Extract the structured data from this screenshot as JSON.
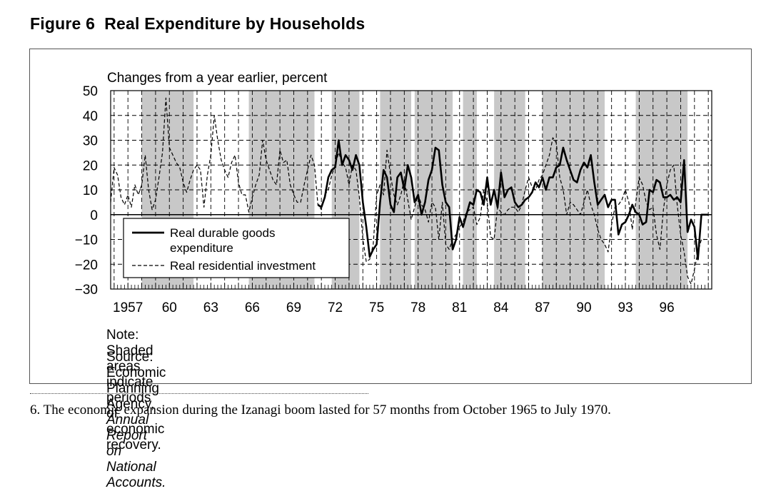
{
  "figure": {
    "title": "Figure 6  Real Expenditure by Households",
    "note": "Note: Shaded areas indicate periods of economic recovery.",
    "source_prefix": "Source: Economic Planning Agency, ",
    "source_title": "Annual Report on National Accounts.",
    "footnote": "6. The economic expansion during the Izanagi boom lasted for 57 months from October 1965 to July 1970."
  },
  "colors": {
    "shade": "#c8c8c8",
    "line": "#000000",
    "grid": "#000000"
  },
  "chart_data": {
    "type": "line",
    "title": "Changes from a year earlier, percent",
    "xlabel": "",
    "ylabel": "Changes from a year earlier, percent",
    "xlim": [
      1955.75,
      1999.25
    ],
    "ylim": [
      -30,
      50
    ],
    "yticks": [
      50,
      40,
      30,
      20,
      10,
      0,
      -10,
      -20,
      -30
    ],
    "ytick_labels": [
      "50",
      "40",
      "30",
      "20",
      "10",
      "0",
      "−10",
      "−20",
      "−30"
    ],
    "xtick_years": [
      1957,
      1960,
      1963,
      1966,
      1969,
      1972,
      1975,
      1978,
      1981,
      1984,
      1987,
      1990,
      1993,
      1996
    ],
    "xtick_labels": [
      "1957",
      "60",
      "63",
      "66",
      "69",
      "72",
      "75",
      "78",
      "81",
      "84",
      "87",
      "90",
      "93",
      "96"
    ],
    "grid": true,
    "shaded_periods": [
      [
        1958.0,
        1961.75
      ],
      [
        1965.75,
        1970.5
      ],
      [
        1971.75,
        1973.75
      ],
      [
        1975.25,
        1977.5
      ],
      [
        1977.75,
        1980.5
      ],
      [
        1981.25,
        1982.25
      ],
      [
        1983.5,
        1985.75
      ],
      [
        1987.0,
        1991.5
      ],
      [
        1993.75,
        1997.5
      ]
    ],
    "legend": {
      "position": "bottom-left",
      "entries": [
        "Real durable goods expenditure",
        "Real residential investment"
      ]
    },
    "series": [
      {
        "name": "Real durable goods expenditure",
        "style": "solid",
        "points": [
          [
            1970.75,
            4
          ],
          [
            1971.0,
            3
          ],
          [
            1971.25,
            7
          ],
          [
            1971.5,
            15
          ],
          [
            1971.75,
            18
          ],
          [
            1972.0,
            19
          ],
          [
            1972.25,
            30
          ],
          [
            1972.5,
            20
          ],
          [
            1972.75,
            24
          ],
          [
            1973.0,
            22
          ],
          [
            1973.25,
            18
          ],
          [
            1973.5,
            24
          ],
          [
            1973.75,
            20
          ],
          [
            1974.0,
            5
          ],
          [
            1974.25,
            -5
          ],
          [
            1974.5,
            -17
          ],
          [
            1974.75,
            -14
          ],
          [
            1975.0,
            -12
          ],
          [
            1975.25,
            5
          ],
          [
            1975.5,
            18
          ],
          [
            1975.75,
            15
          ],
          [
            1976.0,
            4
          ],
          [
            1976.25,
            1
          ],
          [
            1976.5,
            15
          ],
          [
            1976.75,
            17
          ],
          [
            1977.0,
            10
          ],
          [
            1977.25,
            20
          ],
          [
            1977.5,
            15
          ],
          [
            1977.75,
            5
          ],
          [
            1978.0,
            8
          ],
          [
            1978.25,
            0
          ],
          [
            1978.5,
            5
          ],
          [
            1978.75,
            14
          ],
          [
            1979.0,
            18
          ],
          [
            1979.25,
            27
          ],
          [
            1979.5,
            26
          ],
          [
            1979.75,
            12
          ],
          [
            1980.0,
            5
          ],
          [
            1980.25,
            3
          ],
          [
            1980.5,
            -14
          ],
          [
            1980.75,
            -10
          ],
          [
            1981.0,
            -1
          ],
          [
            1981.25,
            -5
          ],
          [
            1981.5,
            0
          ],
          [
            1981.75,
            5
          ],
          [
            1982.0,
            4
          ],
          [
            1982.25,
            10
          ],
          [
            1982.5,
            9
          ],
          [
            1982.75,
            4
          ],
          [
            1983.0,
            15
          ],
          [
            1983.25,
            4
          ],
          [
            1983.5,
            10
          ],
          [
            1983.75,
            3
          ],
          [
            1984.0,
            17
          ],
          [
            1984.25,
            7
          ],
          [
            1984.5,
            10
          ],
          [
            1984.75,
            11
          ],
          [
            1985.0,
            5
          ],
          [
            1985.25,
            3
          ],
          [
            1985.5,
            4
          ],
          [
            1985.75,
            6
          ],
          [
            1986.0,
            7
          ],
          [
            1986.25,
            9
          ],
          [
            1986.5,
            13
          ],
          [
            1986.75,
            11
          ],
          [
            1987.0,
            15
          ],
          [
            1987.25,
            10
          ],
          [
            1987.5,
            15
          ],
          [
            1987.75,
            15
          ],
          [
            1988.0,
            19
          ],
          [
            1988.25,
            20
          ],
          [
            1988.5,
            27
          ],
          [
            1988.75,
            22
          ],
          [
            1989.0,
            18
          ],
          [
            1989.25,
            14
          ],
          [
            1989.5,
            13
          ],
          [
            1989.75,
            18
          ],
          [
            1990.0,
            21
          ],
          [
            1990.25,
            19
          ],
          [
            1990.5,
            24
          ],
          [
            1990.75,
            13
          ],
          [
            1991.0,
            4
          ],
          [
            1991.25,
            6
          ],
          [
            1991.5,
            8
          ],
          [
            1991.75,
            3
          ],
          [
            1992.0,
            6
          ],
          [
            1992.25,
            6
          ],
          [
            1992.5,
            -8
          ],
          [
            1992.75,
            -4
          ],
          [
            1993.0,
            -3
          ],
          [
            1993.25,
            0
          ],
          [
            1993.5,
            4
          ],
          [
            1993.75,
            1
          ],
          [
            1994.0,
            0
          ],
          [
            1994.25,
            -4
          ],
          [
            1994.5,
            -3
          ],
          [
            1994.75,
            10
          ],
          [
            1995.0,
            9
          ],
          [
            1995.25,
            14
          ],
          [
            1995.5,
            13
          ],
          [
            1995.75,
            7
          ],
          [
            1996.0,
            7
          ],
          [
            1996.25,
            8
          ],
          [
            1996.5,
            6
          ],
          [
            1996.75,
            7
          ],
          [
            1997.0,
            5
          ],
          [
            1997.25,
            22
          ],
          [
            1997.5,
            -7
          ],
          [
            1997.75,
            -2
          ],
          [
            1998.0,
            -5
          ],
          [
            1998.25,
            -18
          ],
          [
            1998.5,
            0
          ],
          [
            1998.75,
            0
          ],
          [
            1999.0,
            0
          ]
        ]
      },
      {
        "name": "Real residential investment",
        "style": "dashed",
        "points": [
          [
            1955.75,
            5
          ],
          [
            1956.0,
            19
          ],
          [
            1956.25,
            16
          ],
          [
            1956.5,
            7
          ],
          [
            1956.75,
            4
          ],
          [
            1957.0,
            8
          ],
          [
            1957.25,
            3
          ],
          [
            1957.5,
            12
          ],
          [
            1957.75,
            8
          ],
          [
            1958.0,
            12
          ],
          [
            1958.25,
            24
          ],
          [
            1958.5,
            10
          ],
          [
            1958.75,
            2
          ],
          [
            1959.0,
            6
          ],
          [
            1959.25,
            15
          ],
          [
            1959.5,
            25
          ],
          [
            1959.75,
            47
          ],
          [
            1960.0,
            27
          ],
          [
            1960.25,
            24
          ],
          [
            1960.5,
            21
          ],
          [
            1960.75,
            19
          ],
          [
            1961.0,
            13
          ],
          [
            1961.25,
            9
          ],
          [
            1961.5,
            14
          ],
          [
            1961.75,
            18
          ],
          [
            1962.0,
            20
          ],
          [
            1962.25,
            18
          ],
          [
            1962.5,
            3
          ],
          [
            1962.75,
            16
          ],
          [
            1963.0,
            24
          ],
          [
            1963.25,
            40
          ],
          [
            1963.5,
            30
          ],
          [
            1963.75,
            22
          ],
          [
            1964.0,
            18
          ],
          [
            1964.25,
            15
          ],
          [
            1964.5,
            21
          ],
          [
            1964.75,
            24
          ],
          [
            1965.0,
            13
          ],
          [
            1965.25,
            8
          ],
          [
            1965.5,
            8
          ],
          [
            1965.75,
            1
          ],
          [
            1966.0,
            7
          ],
          [
            1966.25,
            12
          ],
          [
            1966.5,
            16
          ],
          [
            1966.75,
            30
          ],
          [
            1967.0,
            22
          ],
          [
            1967.25,
            18
          ],
          [
            1967.5,
            14
          ],
          [
            1967.75,
            12
          ],
          [
            1968.0,
            26
          ],
          [
            1968.25,
            21
          ],
          [
            1968.5,
            22
          ],
          [
            1968.75,
            12
          ],
          [
            1969.0,
            8
          ],
          [
            1969.25,
            5
          ],
          [
            1969.5,
            5
          ],
          [
            1969.75,
            12
          ],
          [
            1970.0,
            18
          ],
          [
            1970.25,
            24
          ],
          [
            1970.5,
            20
          ],
          [
            1970.75,
            4
          ],
          [
            1971.0,
            2
          ],
          [
            1971.25,
            8
          ],
          [
            1971.5,
            10
          ],
          [
            1971.75,
            16
          ],
          [
            1972.0,
            20
          ],
          [
            1972.25,
            25
          ],
          [
            1972.5,
            21
          ],
          [
            1972.75,
            19
          ],
          [
            1973.0,
            12
          ],
          [
            1973.25,
            20
          ],
          [
            1973.5,
            18
          ],
          [
            1973.75,
            7
          ],
          [
            1974.0,
            -10
          ],
          [
            1974.25,
            -19
          ],
          [
            1974.5,
            -18
          ],
          [
            1974.75,
            -12
          ],
          [
            1975.0,
            8
          ],
          [
            1975.25,
            12
          ],
          [
            1975.5,
            8
          ],
          [
            1975.75,
            26
          ],
          [
            1976.0,
            16
          ],
          [
            1976.25,
            8
          ],
          [
            1976.5,
            4
          ],
          [
            1976.75,
            8
          ],
          [
            1977.0,
            14
          ],
          [
            1977.25,
            6
          ],
          [
            1977.5,
            -2
          ],
          [
            1977.75,
            3
          ],
          [
            1978.0,
            8
          ],
          [
            1978.25,
            4
          ],
          [
            1978.5,
            2
          ],
          [
            1978.75,
            -3
          ],
          [
            1979.0,
            5
          ],
          [
            1979.25,
            3
          ],
          [
            1979.5,
            -10
          ],
          [
            1979.75,
            5
          ],
          [
            1980.0,
            -12
          ],
          [
            1980.25,
            -14
          ],
          [
            1980.5,
            -10
          ],
          [
            1980.75,
            -8
          ],
          [
            1981.0,
            -5
          ],
          [
            1981.25,
            -3
          ],
          [
            1981.5,
            1
          ],
          [
            1981.75,
            2
          ],
          [
            1982.0,
            3
          ],
          [
            1982.25,
            -4
          ],
          [
            1982.5,
            -1
          ],
          [
            1982.75,
            10
          ],
          [
            1983.0,
            5
          ],
          [
            1983.25,
            -9
          ],
          [
            1983.5,
            -10
          ],
          [
            1983.75,
            3
          ],
          [
            1984.0,
            1
          ],
          [
            1984.25,
            0
          ],
          [
            1984.5,
            2
          ],
          [
            1984.75,
            3
          ],
          [
            1985.0,
            3
          ],
          [
            1985.25,
            1
          ],
          [
            1985.5,
            4
          ],
          [
            1985.75,
            10
          ],
          [
            1986.0,
            15
          ],
          [
            1986.25,
            11
          ],
          [
            1986.5,
            10
          ],
          [
            1986.75,
            14
          ],
          [
            1987.0,
            16
          ],
          [
            1987.25,
            20
          ],
          [
            1987.5,
            24
          ],
          [
            1987.75,
            31
          ],
          [
            1988.0,
            29
          ],
          [
            1988.25,
            15
          ],
          [
            1988.5,
            10
          ],
          [
            1988.75,
            0
          ],
          [
            1989.0,
            5
          ],
          [
            1989.25,
            4
          ],
          [
            1989.5,
            2
          ],
          [
            1989.75,
            0
          ],
          [
            1990.0,
            5
          ],
          [
            1990.25,
            10
          ],
          [
            1990.5,
            4
          ],
          [
            1990.75,
            0
          ],
          [
            1991.0,
            -6
          ],
          [
            1991.25,
            -10
          ],
          [
            1991.5,
            -12
          ],
          [
            1991.75,
            -15
          ],
          [
            1992.0,
            -4
          ],
          [
            1992.25,
            3
          ],
          [
            1992.5,
            4
          ],
          [
            1992.75,
            6
          ],
          [
            1993.0,
            10
          ],
          [
            1993.25,
            5
          ],
          [
            1993.5,
            -6
          ],
          [
            1993.75,
            5
          ],
          [
            1994.0,
            15
          ],
          [
            1994.25,
            12
          ],
          [
            1994.5,
            5
          ],
          [
            1994.75,
            2
          ],
          [
            1995.0,
            3
          ],
          [
            1995.25,
            -8
          ],
          [
            1995.5,
            -14
          ],
          [
            1995.75,
            2
          ],
          [
            1996.0,
            12
          ],
          [
            1996.25,
            18
          ],
          [
            1996.5,
            20
          ],
          [
            1996.75,
            4
          ],
          [
            1997.0,
            -8
          ],
          [
            1997.25,
            -15
          ],
          [
            1997.5,
            -25
          ],
          [
            1997.75,
            -28
          ],
          [
            1998.0,
            -22
          ],
          [
            1998.25,
            -15
          ],
          [
            1998.5,
            -10
          ],
          [
            1998.75,
            -10
          ]
        ]
      }
    ]
  }
}
